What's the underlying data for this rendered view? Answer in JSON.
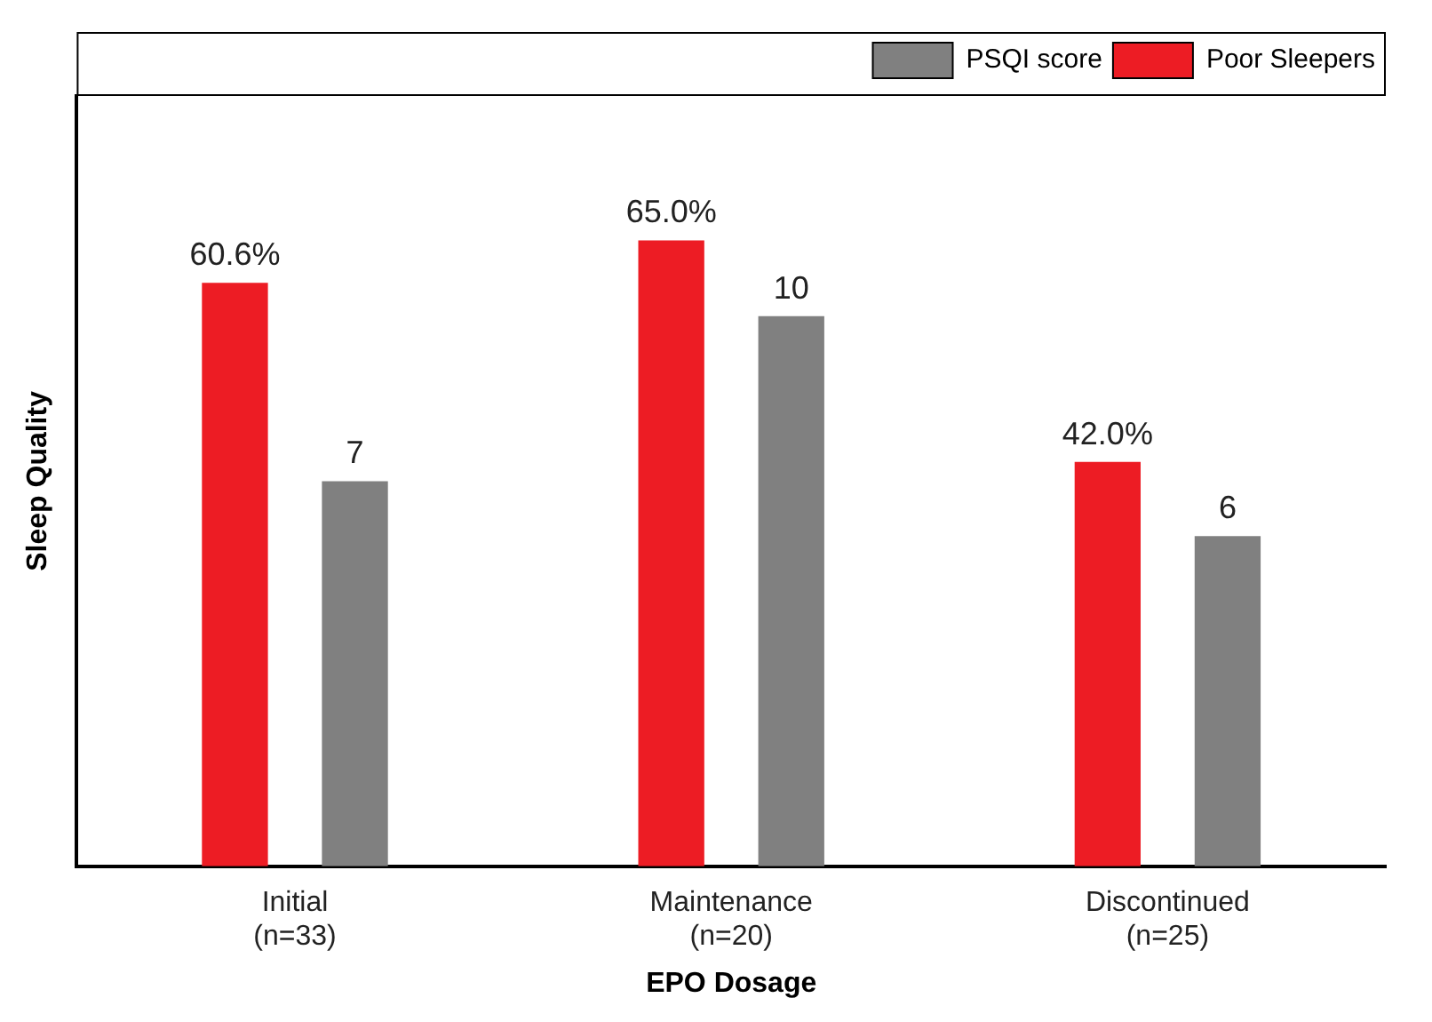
{
  "chart_data": {
    "type": "bar",
    "xlabel": "EPO Dosage",
    "ylabel": "Sleep Quality",
    "categories": [
      "Initial (n=33)",
      "Maintenance (n=20)",
      "Discontinued (n=25)"
    ],
    "series": [
      {
        "name": "Poor Sleepers",
        "color": "#ed1c24",
        "values": [
          60.6,
          65.0,
          42.0
        ],
        "value_labels": [
          "60.6%",
          "65.0%",
          "42.0%"
        ]
      },
      {
        "name": "PSQI score",
        "color": "#808080",
        "values": [
          7,
          10,
          6
        ],
        "axis": "y2",
        "value_labels": [
          "7",
          "10",
          "6"
        ]
      }
    ],
    "tick_labels": "x",
    "grid": false,
    "legend": "top right"
  }
}
